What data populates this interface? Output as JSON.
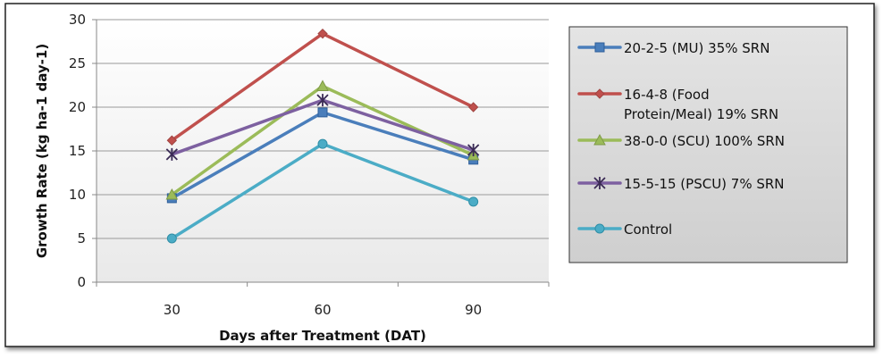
{
  "chart_data": {
    "type": "line",
    "title": "",
    "xlabel": "Days after Treatment (DAT)",
    "ylabel": "Growth Rate (kg ha-1 day-1)",
    "categories": [
      "30",
      "60",
      "90"
    ],
    "ylim": [
      0,
      30
    ],
    "yticks": [
      0,
      5,
      10,
      15,
      20,
      25,
      30
    ],
    "grid": true,
    "legend": "right",
    "series": [
      {
        "name": "20-2-5 (MU) 35% SRN",
        "values": [
          9.6,
          19.4,
          14.0
        ],
        "color": "#4a7ebb",
        "marker": "square"
      },
      {
        "name": "16-4-8 (Food Protein/Meal) 19% SRN",
        "legend_lines": [
          "16-4-8 (Food",
          "Protein/Meal) 19% SRN"
        ],
        "values": [
          16.2,
          28.4,
          20.0
        ],
        "color": "#c0504d",
        "marker": "diamond"
      },
      {
        "name": "38-0-0 (SCU) 100% SRN",
        "values": [
          10.0,
          22.4,
          14.5
        ],
        "color": "#9bbb59",
        "marker": "triangle"
      },
      {
        "name": "15-5-15 (PSCU) 7% SRN",
        "values": [
          14.6,
          20.8,
          15.1
        ],
        "color": "#7d60a0",
        "marker": "star"
      },
      {
        "name": "Control",
        "values": [
          5.0,
          15.8,
          9.2
        ],
        "color": "#4bacc6",
        "marker": "circle"
      }
    ]
  }
}
